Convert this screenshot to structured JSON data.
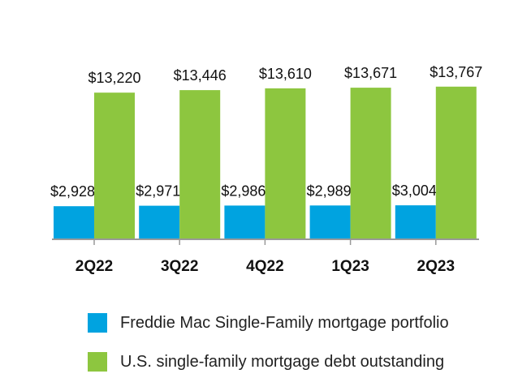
{
  "chart_data": {
    "type": "bar",
    "categories": [
      "2Q22",
      "3Q22",
      "4Q22",
      "1Q23",
      "2Q23"
    ],
    "series": [
      {
        "name": "Freddie Mac Single-Family mortgage portfolio",
        "color": "#00a3e0",
        "values": [
          2928,
          2971,
          2986,
          2989,
          3004
        ],
        "labels": [
          "$2,928",
          "$2,971",
          "$2,986",
          "$2,989",
          "$3,004"
        ]
      },
      {
        "name": "U.S. single-family mortgage debt outstanding",
        "color": "#8dc63f",
        "values": [
          13220,
          13446,
          13610,
          13671,
          13767
        ],
        "labels": [
          "$13,220",
          "$13,446",
          "$13,610",
          "$13,671",
          "$13,767"
        ]
      }
    ],
    "ylim": [
      0,
      14000
    ],
    "grid": false,
    "legend_position": "bottom"
  }
}
